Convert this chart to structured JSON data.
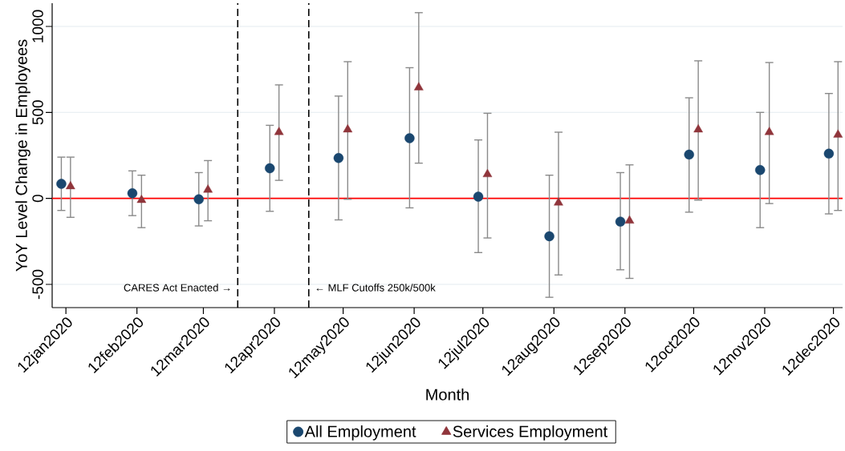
{
  "chart_data": {
    "type": "scatter",
    "xlabel": "Month",
    "ylabel": "YoY Level Change in Employees",
    "xlim": [
      "2020-01-06",
      "2020-12-16"
    ],
    "xticks": [
      {
        "value": "2020-01-12",
        "label": "12jan2020"
      },
      {
        "value": "2020-02-12",
        "label": "12feb2020"
      },
      {
        "value": "2020-03-12",
        "label": "12mar2020"
      },
      {
        "value": "2020-04-12",
        "label": "12apr2020"
      },
      {
        "value": "2020-05-12",
        "label": "12may2020"
      },
      {
        "value": "2020-06-12",
        "label": "12jun2020"
      },
      {
        "value": "2020-07-12",
        "label": "12jul2020"
      },
      {
        "value": "2020-08-12",
        "label": "12aug2020"
      },
      {
        "value": "2020-09-12",
        "label": "12sep2020"
      },
      {
        "value": "2020-10-12",
        "label": "12oct2020"
      },
      {
        "value": "2020-11-12",
        "label": "12nov2020"
      },
      {
        "value": "2020-12-12",
        "label": "12dec2020"
      }
    ],
    "ylim": [
      -635,
      1135
    ],
    "yticks": [
      -500,
      0,
      500,
      1000
    ],
    "grid": "y",
    "legend": "bottom",
    "series": [
      {
        "name": "All Employment",
        "color": "#1a476f",
        "marker": "circle",
        "x": [
          "2020-01-10",
          "2020-02-10",
          "2020-03-10",
          "2020-04-10",
          "2020-05-10",
          "2020-06-10",
          "2020-07-10",
          "2020-08-10",
          "2020-09-10",
          "2020-10-10",
          "2020-11-10",
          "2020-12-10"
        ],
        "values": [
          85,
          30,
          -5,
          175,
          235,
          350,
          10,
          -220,
          -135,
          255,
          165,
          260
        ],
        "errors": [
          [
            -70,
            240
          ],
          [
            -100,
            160
          ],
          [
            -160,
            150
          ],
          [
            -75,
            425
          ],
          [
            -125,
            595
          ],
          [
            -55,
            760
          ],
          [
            -315,
            340
          ],
          [
            -575,
            135
          ],
          [
            -415,
            150
          ],
          [
            -80,
            585
          ],
          [
            -170,
            500
          ],
          [
            -90,
            610
          ]
        ]
      },
      {
        "name": "Services Employment",
        "color": "#90353b",
        "marker": "triangle",
        "x": [
          "2020-01-14",
          "2020-02-14",
          "2020-03-14",
          "2020-04-14",
          "2020-05-14",
          "2020-06-14",
          "2020-07-14",
          "2020-08-14",
          "2020-09-14",
          "2020-10-14",
          "2020-11-14",
          "2020-12-14"
        ],
        "values": [
          70,
          -10,
          50,
          385,
          400,
          645,
          140,
          -25,
          -130,
          400,
          385,
          370
        ],
        "errors": [
          [
            -110,
            240
          ],
          [
            -170,
            135
          ],
          [
            -130,
            220
          ],
          [
            105,
            660
          ],
          [
            -5,
            795
          ],
          [
            205,
            1080
          ],
          [
            -230,
            495
          ],
          [
            -445,
            385
          ],
          [
            -465,
            195
          ],
          [
            -10,
            800
          ],
          [
            -30,
            790
          ],
          [
            -70,
            795
          ]
        ]
      }
    ],
    "ref_lines": [
      {
        "axis": "y",
        "value": 0,
        "color": "#ff0000",
        "line_style": "solid"
      },
      {
        "axis": "x",
        "value": "2020-03-27",
        "label": "CARES Act Enacted →",
        "color": "#000000",
        "line_style": "dashed"
      },
      {
        "axis": "x",
        "value": "2020-04-27",
        "label": "← MLF Cutoffs 250k/500k",
        "color": "#000000",
        "line_style": "dashed"
      }
    ]
  }
}
